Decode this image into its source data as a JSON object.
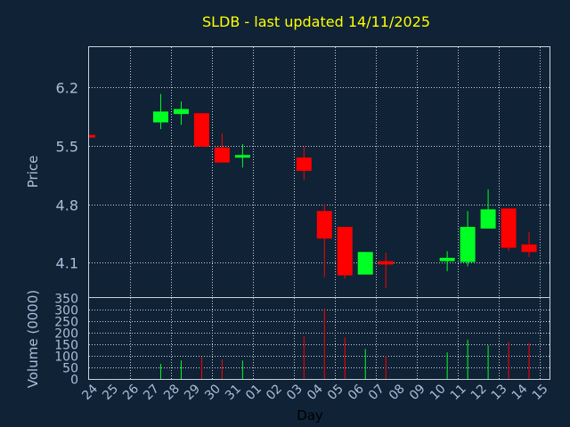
{
  "colors": {
    "background": "#0f2236",
    "up": "#00ff22",
    "down": "#ff0000",
    "title": "#ffff00",
    "text": "#a9bfd9",
    "grid": "#c8d2dc"
  },
  "chart_data": {
    "type": "candlestick",
    "title": "SLDB - last updated 14/11/2025",
    "xlabel": "Day",
    "ylabel": "Price",
    "volume_label": "Volume (0000)",
    "grid": true,
    "x_ticks": [
      "24",
      "25",
      "26",
      "27",
      "28",
      "29",
      "30",
      "31",
      "01",
      "02",
      "03",
      "04",
      "05",
      "06",
      "07",
      "08",
      "09",
      "10",
      "11",
      "12",
      "13",
      "14",
      "15"
    ],
    "price_ticks": [
      "6.2",
      "5.5",
      "4.8",
      "4.1"
    ],
    "price_tick_values": [
      6.2,
      5.5,
      4.8,
      4.1
    ],
    "price_range": [
      3.69,
      6.68
    ],
    "volume_ticks": [
      "350",
      "300",
      "250",
      "200",
      "150",
      "100",
      "50",
      "0"
    ],
    "volume_tick_values": [
      350,
      300,
      250,
      200,
      150,
      100,
      50,
      0
    ],
    "volume_range": [
      0,
      350
    ],
    "candles": [
      {
        "day": "24",
        "open": 5.63,
        "close": 5.6,
        "high": 5.63,
        "low": 5.6,
        "volume": 0
      },
      {
        "day": "27",
        "open": 5.78,
        "close": 5.91,
        "high": 6.12,
        "low": 5.7,
        "volume": 65
      },
      {
        "day": "28",
        "open": 5.88,
        "close": 5.94,
        "high": 6.03,
        "low": 5.75,
        "volume": 80
      },
      {
        "day": "29",
        "open": 5.89,
        "close": 5.49,
        "high": 5.89,
        "low": 5.49,
        "volume": 95
      },
      {
        "day": "30",
        "open": 5.48,
        "close": 5.3,
        "high": 5.65,
        "low": 5.3,
        "volume": 85
      },
      {
        "day": "31",
        "open": 5.36,
        "close": 5.39,
        "high": 5.52,
        "low": 5.24,
        "volume": 80
      },
      {
        "day": "03",
        "open": 5.36,
        "close": 5.2,
        "high": 5.49,
        "low": 5.09,
        "volume": 185
      },
      {
        "day": "04",
        "open": 4.72,
        "close": 4.39,
        "high": 4.8,
        "low": 3.93,
        "volume": 305
      },
      {
        "day": "05",
        "open": 4.53,
        "close": 3.95,
        "high": 4.53,
        "low": 3.91,
        "volume": 180
      },
      {
        "day": "06",
        "open": 3.96,
        "close": 4.23,
        "high": 4.23,
        "low": 3.96,
        "volume": 130
      },
      {
        "day": "07",
        "open": 4.12,
        "close": 4.08,
        "high": 4.22,
        "low": 3.8,
        "volume": 100
      },
      {
        "day": "10",
        "open": 4.12,
        "close": 4.16,
        "high": 4.24,
        "low": 4.0,
        "volume": 115
      },
      {
        "day": "11",
        "open": 4.11,
        "close": 4.53,
        "high": 4.72,
        "low": 4.06,
        "volume": 170
      },
      {
        "day": "12",
        "open": 4.51,
        "close": 4.74,
        "high": 4.98,
        "low": 4.51,
        "volume": 145
      },
      {
        "day": "13",
        "open": 4.75,
        "close": 4.28,
        "high": 4.75,
        "low": 4.24,
        "volume": 160
      },
      {
        "day": "14",
        "open": 4.32,
        "close": 4.23,
        "high": 4.47,
        "low": 4.17,
        "volume": 155
      }
    ]
  }
}
